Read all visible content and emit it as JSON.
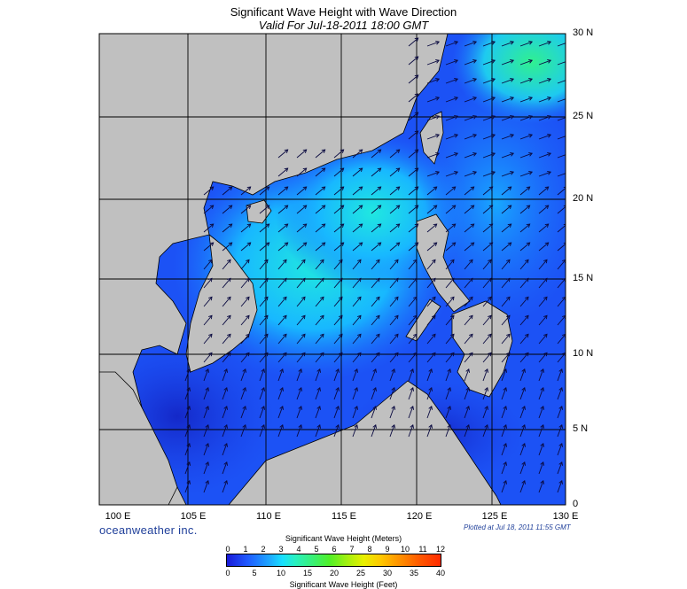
{
  "title": "Significant Wave Height with Wave Direction",
  "subtitle": "Valid For Jul-18-2011 18:00 GMT",
  "latitude_labels": [
    "30 N",
    "25 N",
    "20 N",
    "15 N",
    "10 N",
    "5 N",
    "0"
  ],
  "longitude_labels": [
    "100 E",
    "105 E",
    "110 E",
    "115 E",
    "120 E",
    "125 E",
    "130 E"
  ],
  "brand": "oceanweather inc.",
  "plotted": "Plotted at Jul 18, 2011 11:55 GMT",
  "colorbar": {
    "title_meters": "Significant Wave Height (Meters)",
    "title_feet": "Significant Wave Height (Feet)",
    "meter_ticks": [
      "0",
      "1",
      "2",
      "3",
      "4",
      "5",
      "6",
      "7",
      "8",
      "9",
      "10",
      "11",
      "12"
    ],
    "feet_ticks": [
      "0",
      "5",
      "10",
      "15",
      "20",
      "25",
      "30",
      "35",
      "40"
    ]
  },
  "colors": {
    "land": "#c0c0c0",
    "low_wave": "#1e3cf0",
    "mid_wave": "#1ec8ff",
    "high_wave": "#30f080"
  }
}
